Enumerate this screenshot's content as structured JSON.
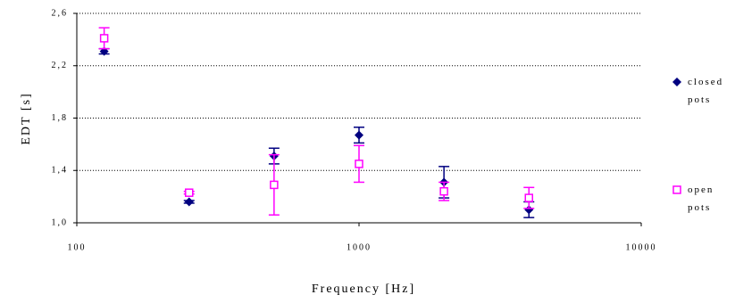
{
  "chart_data": {
    "type": "scatter",
    "x_label": "Frequency [Hz]",
    "y_label": "EDT [s]",
    "x_log": true,
    "xlim": [
      100,
      10000
    ],
    "xticks": [
      100,
      1000,
      {
        "value": 10000,
        "label": "10000"
      }
    ],
    "ylim": [
      1.0,
      2.6
    ],
    "yticks": [
      {
        "value": 1.0,
        "label": "1,0"
      },
      {
        "value": 1.4,
        "label": "1,4"
      },
      {
        "value": 1.8,
        "label": "1,8"
      },
      {
        "value": 2.2,
        "label": "2,2"
      },
      {
        "value": 2.6,
        "label": "2,6"
      }
    ],
    "grid": true,
    "x": [
      125,
      250,
      500,
      1000,
      2000,
      4000
    ],
    "series": [
      {
        "name": "closed pots",
        "color": "#000080",
        "marker": "diamond",
        "values": [
          2.31,
          1.16,
          1.51,
          1.67,
          1.31,
          1.1
        ],
        "errors": [
          0.02,
          0.01,
          0.06,
          0.06,
          0.12,
          0.06
        ]
      },
      {
        "name": "open pots",
        "color": "#ff00ff",
        "marker": "square",
        "values": [
          2.41,
          1.23,
          1.29,
          1.45,
          1.24,
          1.19
        ],
        "errors": [
          0.08,
          0.01,
          0.23,
          0.14,
          0.07,
          0.08
        ]
      }
    ]
  }
}
